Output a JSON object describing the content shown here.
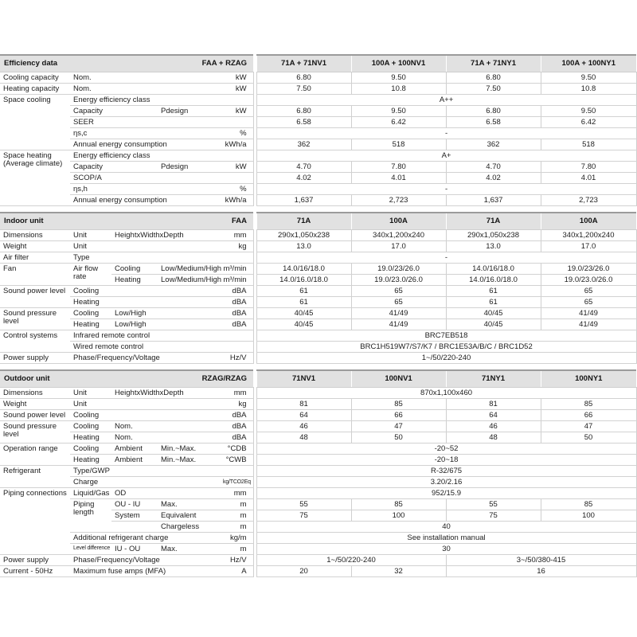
{
  "colors": {
    "header_bg": "#e1e1e1",
    "header_top_border": "#9b9b9b",
    "row_border": "#d2d2d2",
    "text": "#1d1d1d"
  },
  "sections": [
    {
      "id": "efficiency-data",
      "header": {
        "title": "Efficiency data",
        "combo": "FAA + RZAG",
        "cols": [
          "71A + 71NV1",
          "100A + 100NV1",
          "71A + 71NY1",
          "100A + 100NY1"
        ]
      },
      "rows": [
        {
          "labels": [
            {
              "t": "Cooling capacity"
            },
            {
              "t": "Nom.",
              "c": 3
            }
          ],
          "unit": {
            "t": "kW"
          },
          "values": [
            {
              "t": "6.80"
            },
            {
              "t": "9.50"
            },
            {
              "t": "6.80"
            },
            {
              "t": "9.50"
            }
          ]
        },
        {
          "labels": [
            {
              "t": "Heating capacity"
            },
            {
              "t": "Nom.",
              "c": 3
            }
          ],
          "unit": {
            "t": "kW"
          },
          "values": [
            {
              "t": "7.50"
            },
            {
              "t": "10.8"
            },
            {
              "t": "7.50"
            },
            {
              "t": "10.8"
            }
          ]
        },
        {
          "labels": [
            {
              "t": "Space cooling",
              "r": 5
            },
            {
              "t": "Energy efficiency class",
              "c": 3
            }
          ],
          "unit": {
            "t": ""
          },
          "values": [
            {
              "t": "A++",
              "c": 4
            }
          ]
        },
        {
          "labels": [
            {
              "t": "Capacity",
              "c": 2
            },
            {
              "t": "Pdesign"
            }
          ],
          "unit": {
            "t": "kW"
          },
          "values": [
            {
              "t": "6.80"
            },
            {
              "t": "9.50"
            },
            {
              "t": "6.80"
            },
            {
              "t": "9.50"
            }
          ]
        },
        {
          "labels": [
            {
              "t": "SEER",
              "c": 3
            }
          ],
          "unit": {
            "t": ""
          },
          "values": [
            {
              "t": "6.58"
            },
            {
              "t": "6.42"
            },
            {
              "t": "6.58"
            },
            {
              "t": "6.42"
            }
          ]
        },
        {
          "labels": [
            {
              "t": "ηs,c",
              "c": 3
            }
          ],
          "unit": {
            "t": "%"
          },
          "values": [
            {
              "t": "-",
              "c": 4
            }
          ]
        },
        {
          "labels": [
            {
              "t": "Annual energy consumption",
              "c": 3
            }
          ],
          "unit": {
            "t": "kWh/a"
          },
          "values": [
            {
              "t": "362"
            },
            {
              "t": "518"
            },
            {
              "t": "362"
            },
            {
              "t": "518"
            }
          ]
        },
        {
          "labels": [
            {
              "t": "Space heating (Ave­rage climate)",
              "r": 5
            },
            {
              "t": "Energy efficiency class",
              "c": 3
            }
          ],
          "unit": {
            "t": ""
          },
          "values": [
            {
              "t": "A+",
              "c": 4
            }
          ]
        },
        {
          "labels": [
            {
              "t": "Capacity",
              "c": 2
            },
            {
              "t": "Pdesign"
            }
          ],
          "unit": {
            "t": "kW"
          },
          "values": [
            {
              "t": "4.70"
            },
            {
              "t": "7.80"
            },
            {
              "t": "4.70"
            },
            {
              "t": "7.80"
            }
          ]
        },
        {
          "labels": [
            {
              "t": "SCOP/A",
              "c": 3
            }
          ],
          "unit": {
            "t": ""
          },
          "values": [
            {
              "t": "4.02"
            },
            {
              "t": "4.01"
            },
            {
              "t": "4.02"
            },
            {
              "t": "4.01"
            }
          ]
        },
        {
          "labels": [
            {
              "t": "ηs,h",
              "c": 3
            }
          ],
          "unit": {
            "t": "%"
          },
          "values": [
            {
              "t": "-",
              "c": 4
            }
          ]
        },
        {
          "labels": [
            {
              "t": "Annual energy consumption",
              "c": 3
            }
          ],
          "unit": {
            "t": "kWh/a"
          },
          "values": [
            {
              "t": "1,637"
            },
            {
              "t": "2,723"
            },
            {
              "t": "1,637"
            },
            {
              "t": "2,723"
            }
          ]
        }
      ]
    },
    {
      "id": "indoor-unit",
      "header": {
        "title": "Indoor unit",
        "combo": "FAA",
        "cols": [
          "71A",
          "100A",
          "71A",
          "100A"
        ]
      },
      "rows": [
        {
          "labels": [
            {
              "t": "Dimensions"
            },
            {
              "t": "Unit"
            },
            {
              "t": "HeightxWidthxDepth",
              "c": 2
            }
          ],
          "unit": {
            "t": "mm"
          },
          "values": [
            {
              "t": "290x1,050x238"
            },
            {
              "t": "340x1,200x240"
            },
            {
              "t": "290x1,050x238"
            },
            {
              "t": "340x1,200x240"
            }
          ]
        },
        {
          "labels": [
            {
              "t": "Weight"
            },
            {
              "t": "Unit",
              "c": 3
            }
          ],
          "unit": {
            "t": "kg"
          },
          "values": [
            {
              "t": "13.0"
            },
            {
              "t": "17.0"
            },
            {
              "t": "13.0"
            },
            {
              "t": "17.0"
            }
          ]
        },
        {
          "labels": [
            {
              "t": "Air filter"
            },
            {
              "t": "Type",
              "c": 3
            }
          ],
          "unit": {
            "t": ""
          },
          "values": [
            {
              "t": "-",
              "c": 4
            }
          ]
        },
        {
          "labels": [
            {
              "t": "Fan",
              "r": 2
            },
            {
              "t": "Air flow rate",
              "r": 2
            },
            {
              "t": "Cooling"
            },
            {
              "t": "Low/Medium/High"
            }
          ],
          "unit": {
            "t": "m³/min"
          },
          "values": [
            {
              "t": "14.0/16/18.0"
            },
            {
              "t": "19.0/23/26.0"
            },
            {
              "t": "14.0/16/18.0"
            },
            {
              "t": "19.0/23/26.0"
            }
          ]
        },
        {
          "labels": [
            {
              "t": "Heating"
            },
            {
              "t": "Low/Medium/High"
            }
          ],
          "unit": {
            "t": "m³/min"
          },
          "values": [
            {
              "t": "14.0/16.0/18.0"
            },
            {
              "t": "19.0/23.0/26.0"
            },
            {
              "t": "14.0/16.0/18.0"
            },
            {
              "t": "19.0/23.0/26.0"
            }
          ]
        },
        {
          "labels": [
            {
              "t": "Sound power level",
              "r": 2
            },
            {
              "t": "Cooling",
              "c": 3
            }
          ],
          "unit": {
            "t": "dBA"
          },
          "values": [
            {
              "t": "61"
            },
            {
              "t": "65"
            },
            {
              "t": "61"
            },
            {
              "t": "65"
            }
          ]
        },
        {
          "labels": [
            {
              "t": "Heating",
              "c": 3
            }
          ],
          "unit": {
            "t": "dBA"
          },
          "values": [
            {
              "t": "61"
            },
            {
              "t": "65"
            },
            {
              "t": "61"
            },
            {
              "t": "65"
            }
          ]
        },
        {
          "labels": [
            {
              "t": "Sound pressure level",
              "r": 2
            },
            {
              "t": "Cooling"
            },
            {
              "t": "Low/High",
              "c": 2
            }
          ],
          "unit": {
            "t": "dBA"
          },
          "values": [
            {
              "t": "40/45"
            },
            {
              "t": "41/49"
            },
            {
              "t": "40/45"
            },
            {
              "t": "41/49"
            }
          ]
        },
        {
          "labels": [
            {
              "t": "Heating"
            },
            {
              "t": "Low/High",
              "c": 2
            }
          ],
          "unit": {
            "t": "dBA"
          },
          "values": [
            {
              "t": "40/45"
            },
            {
              "t": "41/49"
            },
            {
              "t": "40/45"
            },
            {
              "t": "41/49"
            }
          ]
        },
        {
          "labels": [
            {
              "t": "Control systems",
              "r": 2
            },
            {
              "t": "Infrared remote control",
              "c": 3
            }
          ],
          "unit": {
            "t": ""
          },
          "values": [
            {
              "t": "BRC7EB518",
              "c": 4
            }
          ]
        },
        {
          "labels": [
            {
              "t": "Wired remote control",
              "c": 3
            }
          ],
          "unit": {
            "t": ""
          },
          "values": [
            {
              "t": "BRC1H519W7/S7/K7 / BRC1E53A/B/C / BRC1D52",
              "c": 4
            }
          ]
        },
        {
          "labels": [
            {
              "t": "Power supply"
            },
            {
              "t": "Phase/Frequency/Voltage",
              "c": 3
            }
          ],
          "unit": {
            "t": "Hz/V"
          },
          "values": [
            {
              "t": "1~/50/220-240",
              "c": 4
            }
          ]
        }
      ]
    },
    {
      "id": "outdoor-unit",
      "header": {
        "title": "Outdoor unit",
        "combo": "RZAG/RZAG",
        "cols": [
          "71NV1",
          "100NV1",
          "71NY1",
          "100NY1"
        ]
      },
      "rows": [
        {
          "labels": [
            {
              "t": "Dimensions"
            },
            {
              "t": "Unit"
            },
            {
              "t": "HeightxWidthxDepth",
              "c": 2
            }
          ],
          "unit": {
            "t": "mm"
          },
          "values": [
            {
              "t": "870x1,100x460",
              "c": 4
            }
          ]
        },
        {
          "labels": [
            {
              "t": "Weight"
            },
            {
              "t": "Unit",
              "c": 3
            }
          ],
          "unit": {
            "t": "kg"
          },
          "values": [
            {
              "t": "81"
            },
            {
              "t": "85"
            },
            {
              "t": "81"
            },
            {
              "t": "85"
            }
          ]
        },
        {
          "labels": [
            {
              "t": "Sound power level"
            },
            {
              "t": "Cooling",
              "c": 3
            }
          ],
          "unit": {
            "t": "dBA"
          },
          "values": [
            {
              "t": "64"
            },
            {
              "t": "66"
            },
            {
              "t": "64"
            },
            {
              "t": "66"
            }
          ]
        },
        {
          "labels": [
            {
              "t": "Sound pressure level",
              "r": 2
            },
            {
              "t": "Cooling"
            },
            {
              "t": "Nom.",
              "c": 2
            }
          ],
          "unit": {
            "t": "dBA"
          },
          "values": [
            {
              "t": "46"
            },
            {
              "t": "47"
            },
            {
              "t": "46"
            },
            {
              "t": "47"
            }
          ]
        },
        {
          "labels": [
            {
              "t": "Heating"
            },
            {
              "t": "Nom.",
              "c": 2
            }
          ],
          "unit": {
            "t": "dBA"
          },
          "values": [
            {
              "t": "48"
            },
            {
              "t": "50"
            },
            {
              "t": "48"
            },
            {
              "t": "50"
            }
          ]
        },
        {
          "labels": [
            {
              "t": "Operation range",
              "r": 2
            },
            {
              "t": "Cooling"
            },
            {
              "t": "Ambient"
            },
            {
              "t": "Min.~Max."
            }
          ],
          "unit": {
            "t": "°CDB"
          },
          "values": [
            {
              "t": "-20~52",
              "c": 4
            }
          ]
        },
        {
          "labels": [
            {
              "t": "Heating"
            },
            {
              "t": "Ambient"
            },
            {
              "t": "Min.~Max."
            }
          ],
          "unit": {
            "t": "°CWB"
          },
          "values": [
            {
              "t": "-20~18",
              "c": 4
            }
          ]
        },
        {
          "labels": [
            {
              "t": "Refrigerant",
              "r": 2
            },
            {
              "t": "Type/GWP",
              "c": 3
            }
          ],
          "unit": {
            "t": ""
          },
          "values": [
            {
              "t": "R-32/675",
              "c": 4
            }
          ]
        },
        {
          "labels": [
            {
              "t": "Charge",
              "c": 3
            }
          ],
          "unit": {
            "t": "kg/TCO2Eq",
            "small": true
          },
          "values": [
            {
              "t": "3.20/2.16",
              "c": 4
            }
          ]
        },
        {
          "labels": [
            {
              "t": "Piping connections",
              "r": 6
            },
            {
              "t": "Liquid/Gas"
            },
            {
              "t": "OD",
              "c": 2
            }
          ],
          "unit": {
            "t": "mm"
          },
          "values": [
            {
              "t": "952/15.9",
              "c": 4
            }
          ]
        },
        {
          "labels": [
            {
              "t": "Piping length",
              "r": 3
            },
            {
              "t": "OU - IU"
            },
            {
              "t": "Max."
            }
          ],
          "unit": {
            "t": "m"
          },
          "values": [
            {
              "t": "55"
            },
            {
              "t": "85"
            },
            {
              "t": "55"
            },
            {
              "t": "85"
            }
          ]
        },
        {
          "labels": [
            {
              "t": "System"
            },
            {
              "t": "Equivalent"
            }
          ],
          "unit": {
            "t": "m"
          },
          "values": [
            {
              "t": "75"
            },
            {
              "t": "100"
            },
            {
              "t": "75"
            },
            {
              "t": "100"
            }
          ]
        },
        {
          "labels": [
            {
              "t": ""
            },
            {
              "t": "Chargeless"
            }
          ],
          "unit": {
            "t": "m"
          },
          "values": [
            {
              "t": "40",
              "c": 4
            }
          ]
        },
        {
          "labels": [
            {
              "t": "Additional refrigerant charge",
              "c": 3
            }
          ],
          "unit": {
            "t": "kg/m"
          },
          "values": [
            {
              "t": "See installation manual",
              "c": 4
            }
          ]
        },
        {
          "labels": [
            {
              "t": "Level difference",
              "small": true
            },
            {
              "t": "IU - OU"
            },
            {
              "t": "Max."
            }
          ],
          "unit": {
            "t": "m"
          },
          "values": [
            {
              "t": "30",
              "c": 4
            }
          ]
        },
        {
          "labels": [
            {
              "t": "Power supply"
            },
            {
              "t": "Phase/Frequency/Voltage",
              "c": 3
            }
          ],
          "unit": {
            "t": "Hz/V"
          },
          "values": [
            {
              "t": "1~/50/220-240",
              "c": 2
            },
            {
              "t": "3~/50/380-415",
              "c": 2
            }
          ]
        },
        {
          "labels": [
            {
              "t": "Current - 50Hz"
            },
            {
              "t": "Maximum fuse amps (MFA)",
              "c": 3
            }
          ],
          "unit": {
            "t": "A"
          },
          "values": [
            {
              "t": "20"
            },
            {
              "t": "32"
            },
            {
              "t": "16",
              "c": 2
            }
          ]
        }
      ]
    }
  ]
}
